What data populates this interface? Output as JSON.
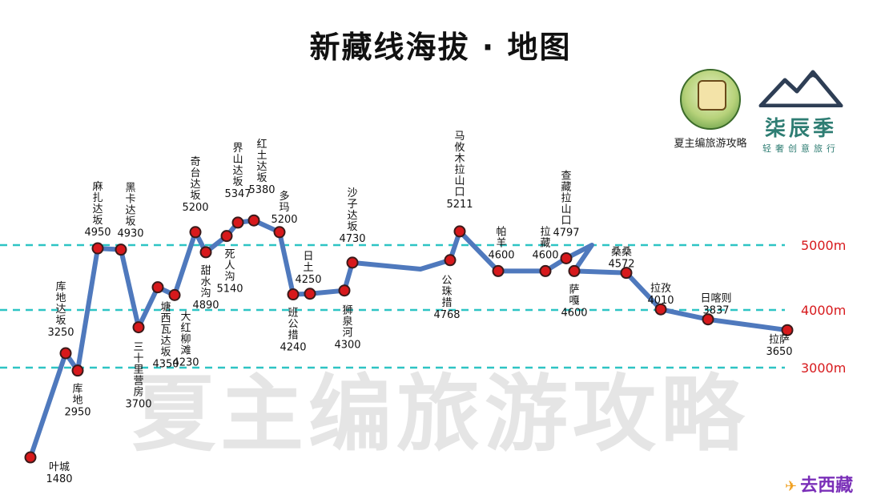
{
  "title": "新藏线海拔 · 地图",
  "watermark": "夏主编旅游攻略",
  "logos": {
    "xiazhubian": "夏主编旅游攻略",
    "qichenji_name": "柒辰季",
    "qichenji_sub": "轻奢创意旅行",
    "quxizang": "去西藏"
  },
  "colors": {
    "line": "#4f79bd",
    "marker": "#d7191c",
    "ref_line": "#2ec4c4",
    "ref_label": "#d7191c"
  },
  "chart_data": {
    "type": "line",
    "title": "新藏线海拔 · 地图",
    "xlabel": "",
    "ylabel": "",
    "reference_lines": [
      {
        "value": 5000,
        "label": "5000m"
      },
      {
        "value": 4000,
        "label": "4000m"
      },
      {
        "value": 3000,
        "label": "3000m"
      }
    ],
    "points": [
      {
        "name": "叶城",
        "elevation": "1480",
        "value": 1480
      },
      {
        "name": "库地达坂",
        "elevation": "3250",
        "value": 3250
      },
      {
        "name": "库地",
        "elevation": "2950",
        "value": 2950
      },
      {
        "name": "麻扎达坂",
        "elevation": "4950",
        "value": 4950
      },
      {
        "name": "黑卡达坂",
        "elevation": "4930",
        "value": 4930
      },
      {
        "name": "三十里营房",
        "elevation": "3700",
        "value": 3700
      },
      {
        "name": "塘西瓦达坂",
        "elevation": "4350",
        "value": 4350
      },
      {
        "name": "大红柳滩",
        "elevation": "4230",
        "value": 4230
      },
      {
        "name": "奇台达坂",
        "elevation": "5200",
        "value": 5200
      },
      {
        "name": "甜水沟",
        "elevation": "4890",
        "value": 4890
      },
      {
        "name": "死人沟",
        "elevation": "5140",
        "value": 5140
      },
      {
        "name": "界山达坂",
        "elevation": "5347",
        "value": 5347
      },
      {
        "name": "红土达坂",
        "elevation": "5380",
        "value": 5380
      },
      {
        "name": "多玛",
        "elevation": "5200",
        "value": 5200
      },
      {
        "name": "班公措",
        "elevation": "4240",
        "value": 4240
      },
      {
        "name": "日土",
        "elevation": "4250",
        "value": 4250
      },
      {
        "name": "狮泉河",
        "elevation": "4300",
        "value": 4300
      },
      {
        "name": "沙子达坂",
        "elevation": "4730",
        "value": 4730
      },
      {
        "name": "公珠措",
        "elevation": "4768",
        "value": 4768
      },
      {
        "name": "马攸木拉山口",
        "elevation": "5211",
        "value": 5211
      },
      {
        "name": "帕羊",
        "elevation": "4600",
        "value": 4600
      },
      {
        "name": "拉藏",
        "elevation": "4600",
        "value": 4600
      },
      {
        "name": "查藏拉山口",
        "elevation": "4797",
        "value": 4797
      },
      {
        "name": "萨嘎",
        "elevation": "4600",
        "value": 4600
      },
      {
        "name": "桑桑",
        "elevation": "4572",
        "value": 4572
      },
      {
        "name": "拉孜",
        "elevation": "4010",
        "value": 4010
      },
      {
        "name": "日喀则",
        "elevation": "3837",
        "value": 3837
      },
      {
        "name": "拉萨",
        "elevation": "3650",
        "value": 3650
      }
    ]
  }
}
